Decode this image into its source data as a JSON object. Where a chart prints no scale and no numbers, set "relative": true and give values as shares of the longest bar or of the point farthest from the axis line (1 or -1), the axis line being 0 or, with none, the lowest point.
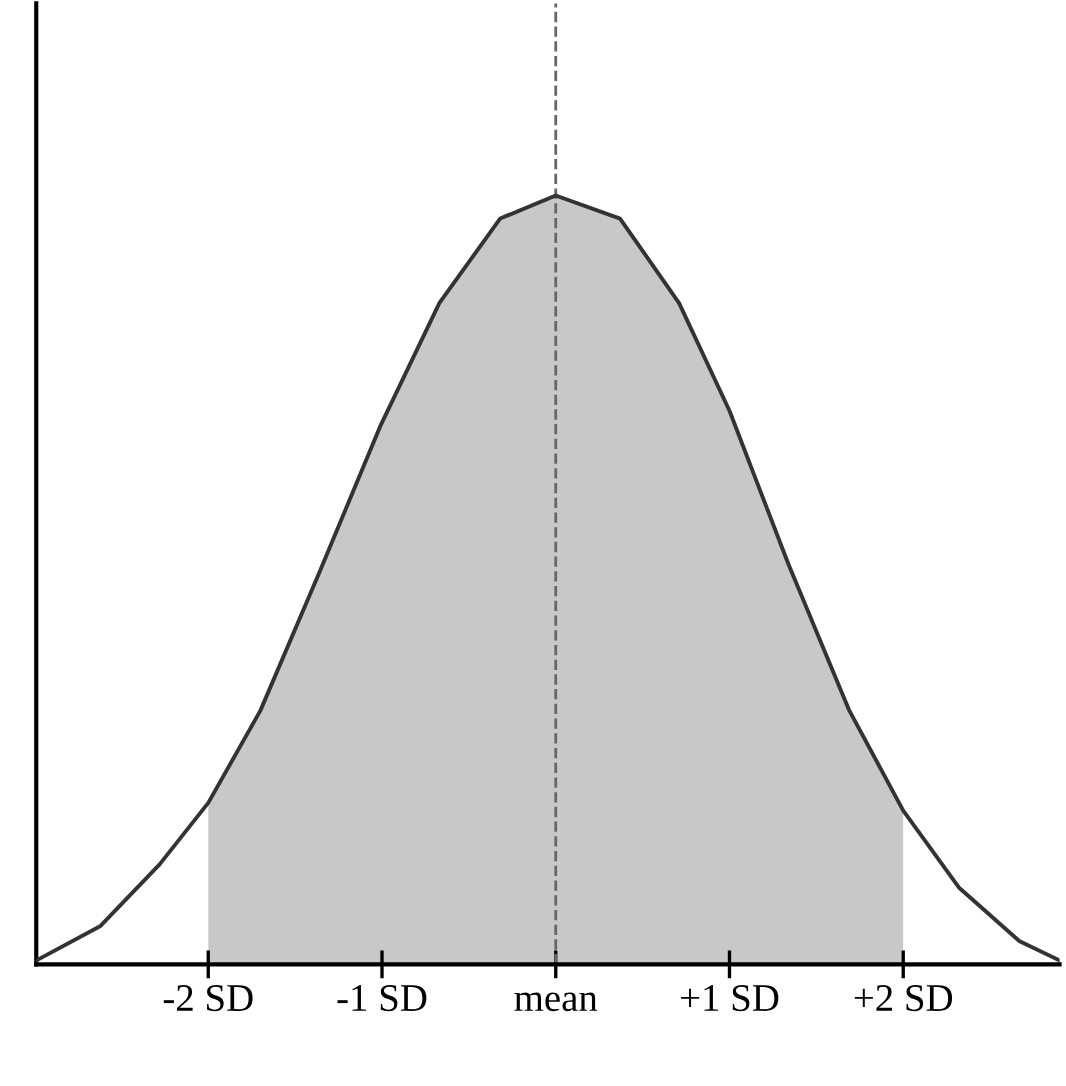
{
  "chart_data": {
    "type": "line",
    "relative": true,
    "x": [
      -2.99,
      -2.62,
      -2.28,
      -2,
      -1.7,
      -1.36,
      -1.01,
      -0.67,
      -0.32,
      0,
      0.37,
      0.71,
      1,
      1.34,
      1.69,
      2,
      2.32,
      2.67,
      2.9
    ],
    "series": [
      {
        "type": "area",
        "color": "#c8c8c8",
        "x": [
          -2,
          -1.7,
          -1.36,
          -1.01,
          -0.67,
          -0.32,
          0,
          0.37,
          0.71,
          1,
          1.34,
          1.69,
          2
        ],
        "values": [
          0.21,
          0.33,
          0.51,
          0.7,
          0.86,
          0.97,
          1.0,
          0.97,
          0.86,
          0.72,
          0.52,
          0.33,
          0.2
        ]
      },
      {
        "color": "#333333",
        "values": [
          0.005,
          0.05,
          0.13,
          0.21,
          0.33,
          0.51,
          0.7,
          0.86,
          0.97,
          1.0,
          0.97,
          0.86,
          0.72,
          0.52,
          0.33,
          0.2,
          0.1,
          0.03,
          0.005
        ]
      }
    ],
    "xlim": [
      -2.99,
      2.9
    ],
    "xticks": [
      {
        "value": -2,
        "label": "-2 SD"
      },
      {
        "value": -1,
        "label": "-1 SD"
      },
      {
        "value": 0,
        "label": "mean"
      },
      {
        "value": 1,
        "label": "+1 SD"
      },
      {
        "value": 2,
        "label": "+2 SD"
      }
    ],
    "tick_labels": "x",
    "ref_lines": [
      {
        "axis": "x",
        "value": 0,
        "color": "#666666",
        "line_style": "dashed"
      }
    ],
    "grid": false,
    "legend": false,
    "marker": "none",
    "line_style": "solid"
  }
}
